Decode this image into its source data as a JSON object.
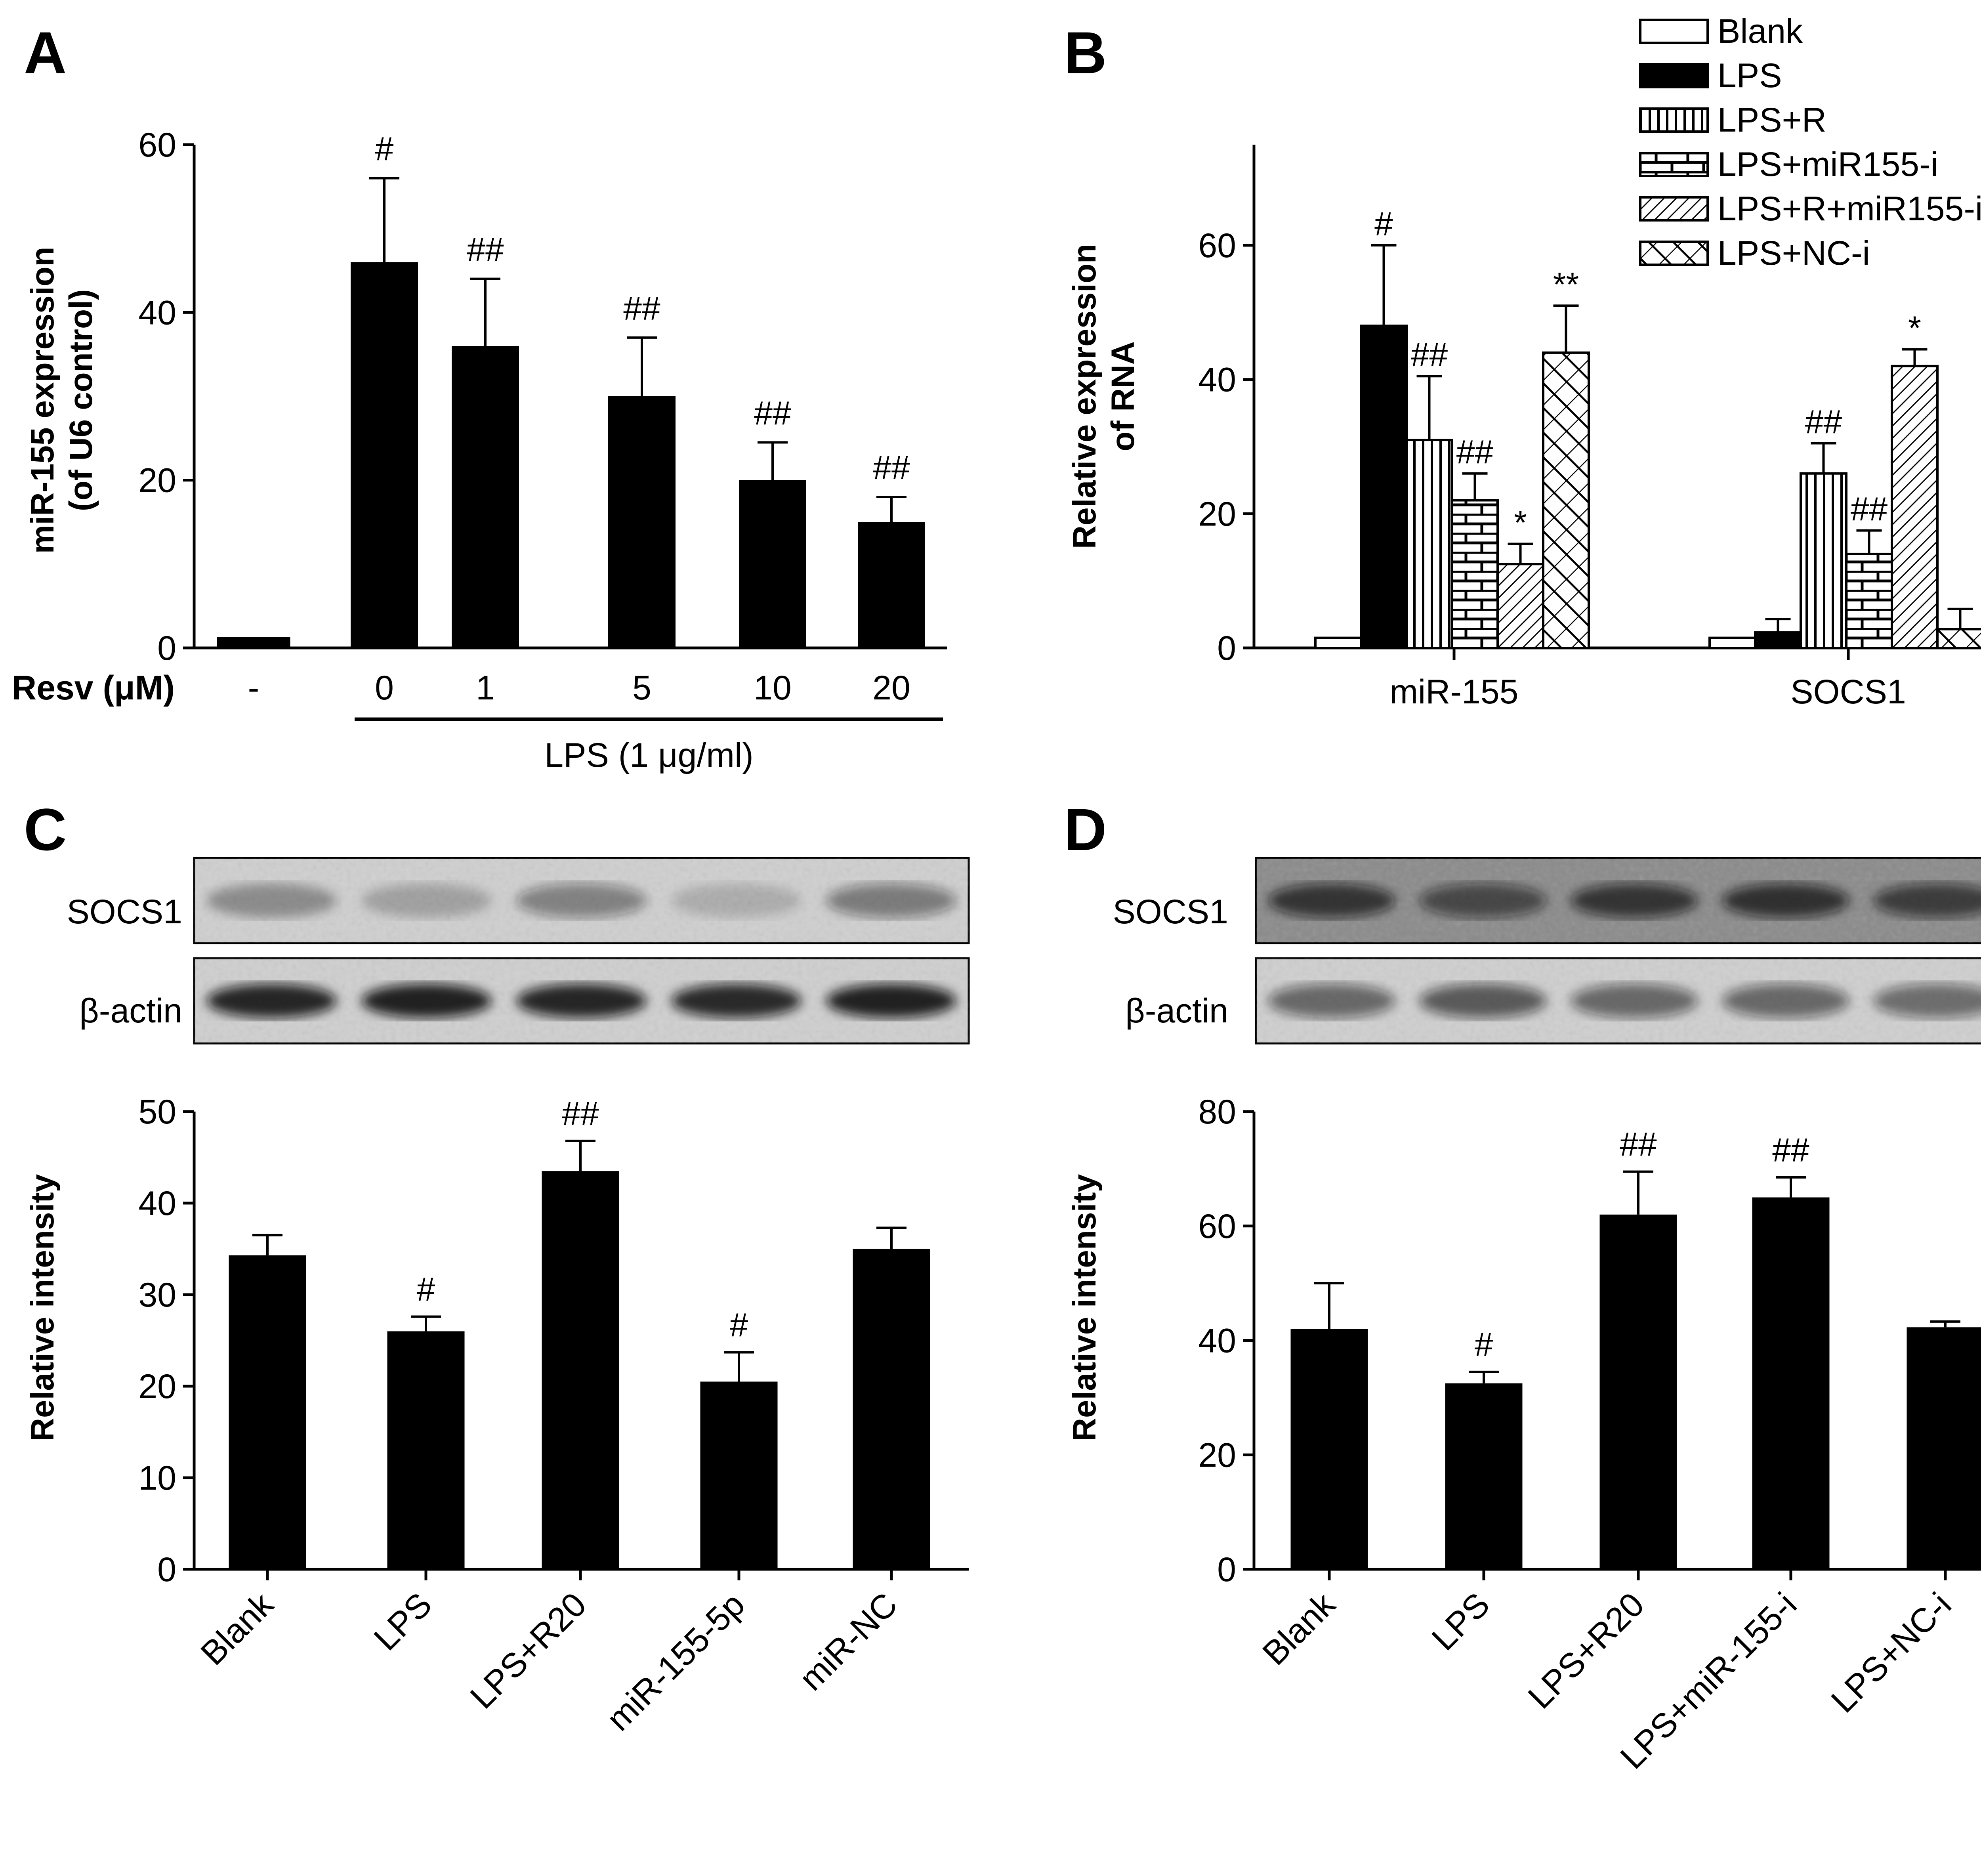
{
  "figure": {
    "panel_letters": [
      "A",
      "B",
      "C",
      "D"
    ]
  },
  "chart_data": [
    {
      "panel": "A",
      "type": "bar",
      "ylabel_lines": [
        "miR-155 expression",
        "(of U6 control)"
      ],
      "ylim": [
        0,
        60
      ],
      "yticks": [
        0,
        20,
        40,
        60
      ],
      "xlabel_row_label": "Resv (μM)",
      "categories": [
        "-",
        "0",
        "1",
        "5",
        "10",
        "20"
      ],
      "values": [
        1.3,
        46,
        36,
        30,
        20,
        15
      ],
      "errors": [
        0.3,
        10,
        8,
        7,
        4.5,
        3
      ],
      "significance": [
        "",
        "#",
        "##",
        "##",
        "##",
        "##"
      ],
      "group_label": "LPS (1 μg/ml)",
      "color": "#000000"
    },
    {
      "panel": "B",
      "type": "bar",
      "ylabel_lines": [
        "Relative expression",
        "of RNA"
      ],
      "ylim": [
        0,
        75
      ],
      "yticks": [
        0,
        20,
        40,
        60
      ],
      "categories": [
        "miR-155",
        "SOCS1"
      ],
      "series": [
        {
          "name": "Blank",
          "pattern": "empty",
          "values": [
            1.5,
            1.5
          ],
          "errors": [
            0,
            0
          ],
          "significance": [
            "",
            ""
          ]
        },
        {
          "name": "LPS",
          "pattern": "solid",
          "values": [
            48,
            2.3
          ],
          "errors": [
            12,
            2
          ],
          "significance": [
            "#",
            ""
          ]
        },
        {
          "name": "LPS+R",
          "pattern": "vertical",
          "values": [
            31,
            26
          ],
          "errors": [
            9.5,
            4.5
          ],
          "significance": [
            "##",
            "##"
          ]
        },
        {
          "name": "LPS+miR155-i",
          "pattern": "brick",
          "values": [
            22,
            14
          ],
          "errors": [
            4,
            3.5
          ],
          "significance": [
            "##",
            "##"
          ]
        },
        {
          "name": "LPS+R+miR155-i",
          "pattern": "diagonal",
          "values": [
            12.5,
            42
          ],
          "errors": [
            3,
            2.5
          ],
          "significance": [
            "*",
            "*"
          ]
        },
        {
          "name": "LPS+NC-i",
          "pattern": "crosshatch",
          "values": [
            44,
            2.8
          ],
          "errors": [
            7,
            3
          ],
          "significance": [
            "**",
            ""
          ]
        }
      ]
    },
    {
      "panel": "C",
      "type": "bar",
      "blot_labels": [
        "SOCS1",
        "β-actin"
      ],
      "ylabel": "Relative intensity",
      "ylim": [
        0,
        50
      ],
      "yticks": [
        0,
        10,
        20,
        30,
        40,
        50
      ],
      "categories": [
        "Blank",
        "LPS",
        "LPS+R20",
        "miR-155-5p",
        "miR-NC"
      ],
      "values": [
        34.3,
        26,
        43.5,
        20.5,
        35
      ],
      "errors": [
        2.2,
        1.6,
        3.3,
        3.2,
        2.3
      ],
      "significance": [
        "",
        "#",
        "##",
        "#",
        ""
      ],
      "blot_intensity": {
        "SOCS1": [
          0.32,
          0.22,
          0.42,
          0.16,
          0.45
        ],
        "β-actin": [
          0.88,
          0.9,
          0.88,
          0.86,
          0.9
        ]
      },
      "color": "#000000"
    },
    {
      "panel": "D",
      "type": "bar",
      "blot_labels": [
        "SOCS1",
        "β-actin"
      ],
      "ylabel": "Relative intensity",
      "ylim": [
        0,
        80
      ],
      "yticks": [
        0,
        20,
        40,
        60,
        80
      ],
      "categories": [
        "Blank",
        "LPS",
        "LPS+R20",
        "LPS+miR-155-i",
        "LPS+NC-i"
      ],
      "values": [
        42,
        32.5,
        62,
        65,
        42.3
      ],
      "errors": [
        8,
        2,
        7.5,
        3.5,
        1
      ],
      "significance": [
        "",
        "#",
        "##",
        "##",
        ""
      ],
      "blot_intensity": {
        "SOCS1": [
          0.72,
          0.58,
          0.72,
          0.75,
          0.66
        ],
        "β-actin": [
          0.55,
          0.62,
          0.55,
          0.55,
          0.52
        ]
      },
      "color": "#000000"
    }
  ]
}
